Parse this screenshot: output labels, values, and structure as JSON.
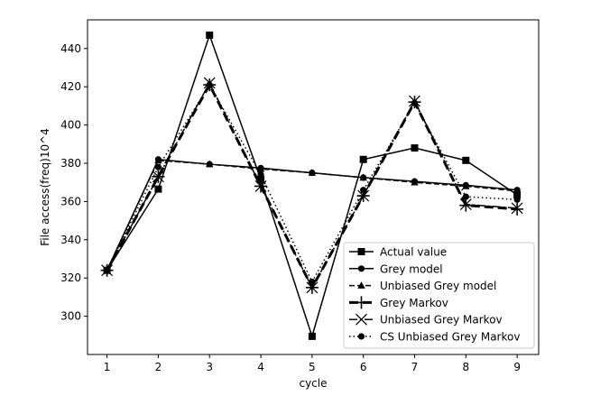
{
  "chart_data": {
    "type": "line",
    "title": "",
    "xlabel": "cycle",
    "ylabel": "File access(freq)10^4",
    "x": [
      1,
      2,
      3,
      4,
      5,
      6,
      7,
      8,
      9
    ],
    "xlim": [
      0.62,
      9.42
    ],
    "ylim": [
      280,
      455
    ],
    "xticks": [
      1,
      2,
      3,
      4,
      5,
      6,
      7,
      8,
      9
    ],
    "yticks": [
      300,
      320,
      340,
      360,
      380,
      400,
      420,
      440
    ],
    "grid": false,
    "legend_position": "lower-right",
    "series": [
      {
        "name": "Actual value",
        "marker": "square",
        "dash": "solid",
        "width": 1.5,
        "values": [
          324,
          366.5,
          447,
          371.5,
          289.5,
          382,
          388,
          381.5,
          363.5
        ]
      },
      {
        "name": "Grey model",
        "marker": "circle",
        "dash": "solid",
        "width": 1.5,
        "values": [
          324,
          382,
          379.5,
          377.5,
          375,
          372.5,
          370.5,
          368.5,
          366
        ]
      },
      {
        "name": "Unbiased Grey model",
        "marker": "triangle",
        "dash": "dashed",
        "width": 1.5,
        "values": [
          324,
          381.5,
          379.5,
          377,
          375,
          372.5,
          370,
          368,
          365.5
        ]
      },
      {
        "name": "Grey Markov",
        "marker": "plus",
        "dash": "dashed-thick",
        "width": 3,
        "values": [
          324,
          373,
          421,
          368,
          315,
          363,
          412,
          358,
          356
        ]
      },
      {
        "name": "Unbiased Grey Markov",
        "marker": "x",
        "dash": "dashdot",
        "width": 1.5,
        "values": [
          324,
          373,
          422,
          368,
          315,
          363,
          412.5,
          358.5,
          356.5
        ]
      },
      {
        "name": "CS Unbiased Grey Markov",
        "marker": "circle",
        "dash": "dotted",
        "width": 1.5,
        "values": [
          324,
          378,
          421,
          374,
          318,
          366,
          411.5,
          362.5,
          361
        ]
      }
    ]
  }
}
